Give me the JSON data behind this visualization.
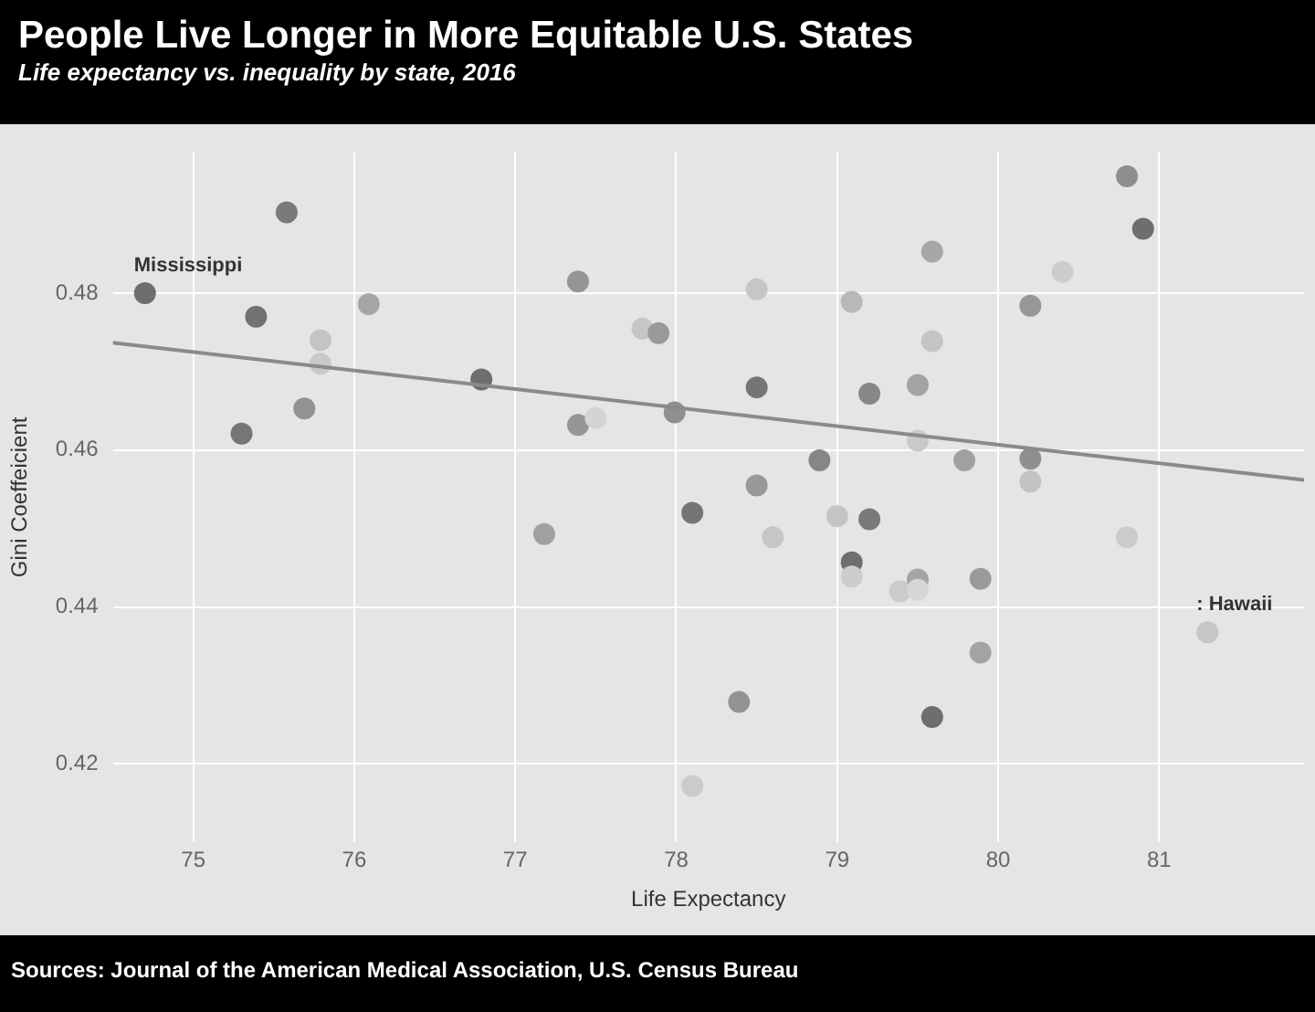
{
  "chart_data": {
    "type": "scatter",
    "title": "People Live Longer in More Equitable U.S. States",
    "subtitle": "Life expectancy vs. inequality by state, 2016",
    "xlabel": "Life Expectancy",
    "ylabel": "Gini Coeffeicient",
    "xlim": [
      74.5,
      81.9
    ],
    "xticks": [
      75,
      76,
      77,
      78,
      79,
      80,
      81
    ],
    "ylim": [
      0.41,
      0.498
    ],
    "yticks": [
      0.42,
      0.44,
      0.46,
      0.48
    ],
    "grid": true,
    "series": [
      {
        "marker": "circle",
        "x": [
          74.7,
          75.58,
          75.39,
          75.3,
          75.69,
          75.79,
          75.79,
          76.09,
          76.79,
          77.39,
          77.39,
          77.5,
          77.18,
          77.79,
          77.89,
          77.99,
          78.1,
          78.5,
          78.5,
          78.5,
          78.89,
          79.0,
          79.09,
          79.2,
          79.2,
          79.5,
          79.5,
          79.59,
          79.59,
          79.79,
          80.2,
          80.2,
          80.2,
          80.4,
          80.8,
          80.9,
          78.6,
          79.09,
          79.09,
          79.39,
          79.5,
          79.5,
          79.89,
          79.89,
          80.8,
          81.3,
          78.39,
          79.59,
          78.1
        ],
        "values": [
          0.48,
          0.4903,
          0.477,
          0.4621,
          0.4653,
          0.474,
          0.471,
          0.4786,
          0.469,
          0.4815,
          0.4632,
          0.4641,
          0.4493,
          0.4755,
          0.4749,
          0.4648,
          0.452,
          0.4805,
          0.468,
          0.4555,
          0.4587,
          0.4516,
          0.4789,
          0.4672,
          0.4512,
          0.4683,
          0.4612,
          0.4853,
          0.4739,
          0.4587,
          0.4784,
          0.4589,
          0.456,
          0.4827,
          0.4949,
          0.4882,
          0.4489,
          0.4457,
          0.4439,
          0.442,
          0.4435,
          0.4422,
          0.4436,
          0.4342,
          0.4489,
          0.4368,
          0.4279,
          0.426,
          0.4172
        ],
        "colors": [
          "#6e6e6e",
          "#7a7a7a",
          "#727272",
          "#767676",
          "#929292",
          "#c4c4c4",
          "#c9c9c9",
          "#a6a6a6",
          "#6e6e6e",
          "#959595",
          "#959595",
          "#d4d4d4",
          "#a0a0a0",
          "#c6c6c6",
          "#9a9a9a",
          "#8f8f8f",
          "#757575",
          "#c6c6c6",
          "#757575",
          "#989898",
          "#868686",
          "#c4c4c4",
          "#b8b8b8",
          "#878787",
          "#7a7a7a",
          "#a3a3a3",
          "#c9c9c9",
          "#a6a6a6",
          "#c4c4c4",
          "#a0a0a0",
          "#979797",
          "#8f8f8f",
          "#c2c2c2",
          "#cdcdcd",
          "#8e8e8e",
          "#6e6e6e",
          "#c6c6c6",
          "#6e6e6e",
          "#cdcdcd",
          "#cbcbcb",
          "#a5a5a5",
          "#d6d6d6",
          "#9a9a9a",
          "#a3a3a3",
          "#cbcbcb",
          "#c6c6c6",
          "#939393",
          "#6e6e6e",
          "#cbcbcb"
        ]
      },
      {
        "type": "line",
        "marker": "none",
        "x": [
          74.5,
          81.9
        ],
        "values": [
          0.4737,
          0.4562
        ],
        "color": "#8a8a8a"
      }
    ],
    "annotations": [
      {
        "text": "Mississippi",
        "x": 74.7,
        "y": 0.48
      },
      {
        "text": ": Hawaii",
        "x": 81.3,
        "y": 0.4368
      },
      "Sources: Journal of the American Medical Association, U.S. Census Bureau"
    ]
  }
}
